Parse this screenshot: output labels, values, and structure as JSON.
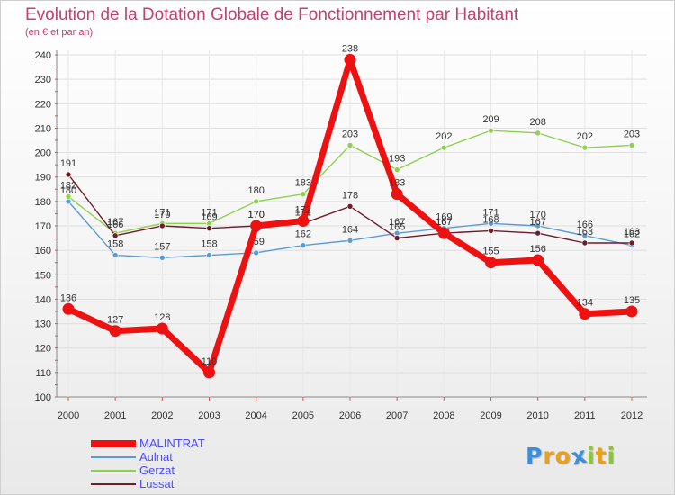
{
  "title": "Evolution de la Dotation Globale de Fonctionnement par Habitant",
  "subtitle": "(en € et par an)",
  "logo": {
    "text": "Proxiti",
    "letters": [
      "P",
      "r",
      "o",
      "x",
      "i",
      "t",
      "i"
    ],
    "colors": [
      "#3b8ed8",
      "#e8a11c",
      "#e8a11c",
      "#3b8ed8",
      "#8bc43f",
      "#e8a11c",
      "#8bc43f"
    ]
  },
  "chart_data": {
    "type": "line",
    "title": "Evolution de la Dotation Globale de Fonctionnement par Habitant",
    "subtitle": "(en € et par an)",
    "xlabel": "",
    "ylabel": "",
    "x": [
      "2000",
      "2001",
      "2002",
      "2003",
      "2004",
      "2005",
      "2006",
      "2007",
      "2008",
      "2009",
      "2010",
      "2011",
      "2012"
    ],
    "ylim": [
      100,
      240
    ],
    "yticks": [
      "100",
      "110",
      "120",
      "130",
      "140",
      "150",
      "160",
      "170",
      "180",
      "190",
      "200",
      "210",
      "220",
      "230",
      "240"
    ],
    "grid": "horizontal",
    "legend_position": "bottom-left",
    "series": [
      {
        "name": "Aulnat",
        "color": "#5b9bd5",
        "label_color": "#4a4aff",
        "values": [
          180,
          158,
          157,
          158,
          159,
          162,
          164,
          167,
          169,
          171,
          170,
          166,
          162
        ],
        "labels": [
          "180",
          "158",
          "157",
          "158",
          "159",
          "162",
          "164",
          "167",
          "169",
          "171",
          "170",
          "166",
          "162"
        ]
      },
      {
        "name": "Gerzat",
        "color": "#8fd14f",
        "label_color": "#4a4aff",
        "values": [
          182,
          167,
          171,
          171,
          180,
          183,
          203,
          193,
          202,
          209,
          208,
          202,
          203
        ],
        "labels": [
          "182",
          "167",
          "171",
          "171",
          "180",
          "183",
          "203",
          "193",
          "202",
          "209",
          "208",
          "202",
          "203"
        ]
      },
      {
        "name": "Lussat",
        "color": "#6e1d2a",
        "label_color": "#4a4aff",
        "values": [
          191,
          166,
          170,
          169,
          170,
          171,
          178,
          165,
          167,
          168,
          167,
          163,
          163
        ],
        "labels": [
          "191",
          "166",
          "170",
          "169",
          "170",
          "171",
          "178",
          "165",
          "167",
          "168",
          "167",
          "163",
          "163"
        ]
      },
      {
        "name": "MALINTRAT",
        "color": "#ee1111",
        "label_color": "#4a4aff",
        "bold": true,
        "values": [
          136,
          127,
          128,
          110,
          170,
          172,
          238,
          183,
          167,
          155,
          156,
          134,
          135
        ],
        "labels": [
          "136",
          "127",
          "128",
          "110",
          "170",
          "172",
          "238",
          "183",
          "167",
          "155",
          "156",
          "134",
          "135"
        ]
      }
    ],
    "legend_order": [
      "MALINTRAT",
      "Aulnat",
      "Gerzat",
      "Lussat"
    ]
  }
}
